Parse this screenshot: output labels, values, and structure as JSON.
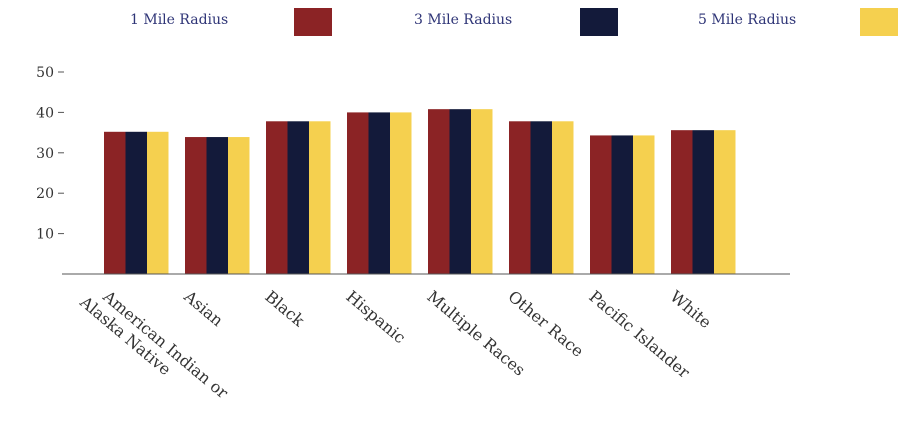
{
  "chart_data": {
    "type": "bar",
    "title": "",
    "xlabel": "",
    "ylabel": "",
    "categories": [
      [
        "American Indian or",
        "Alaska Native"
      ],
      [
        "Asian"
      ],
      [
        "Black"
      ],
      [
        "Hispanic"
      ],
      [
        "Multiple Races"
      ],
      [
        "Other Race"
      ],
      [
        "Pacific Islander"
      ],
      [
        "White"
      ]
    ],
    "series": [
      {
        "name": "1 Mile Radius",
        "color": "#8b2325",
        "values": [
          35.2,
          33.9,
          37.8,
          40.0,
          40.8,
          37.8,
          34.3,
          35.6
        ]
      },
      {
        "name": "3 Mile Radius",
        "color": "#131a3a",
        "values": [
          35.2,
          33.9,
          37.8,
          40.0,
          40.8,
          37.8,
          34.3,
          35.6
        ]
      },
      {
        "name": "5 Mile Radius",
        "color": "#f5d04f",
        "values": [
          35.2,
          33.9,
          37.8,
          40.0,
          40.8,
          37.8,
          34.3,
          35.6
        ]
      }
    ],
    "ylim": [
      0,
      50
    ],
    "yticks": [
      "10",
      "20",
      "30",
      "40",
      "50"
    ],
    "grid": false,
    "legend_position": "top"
  }
}
